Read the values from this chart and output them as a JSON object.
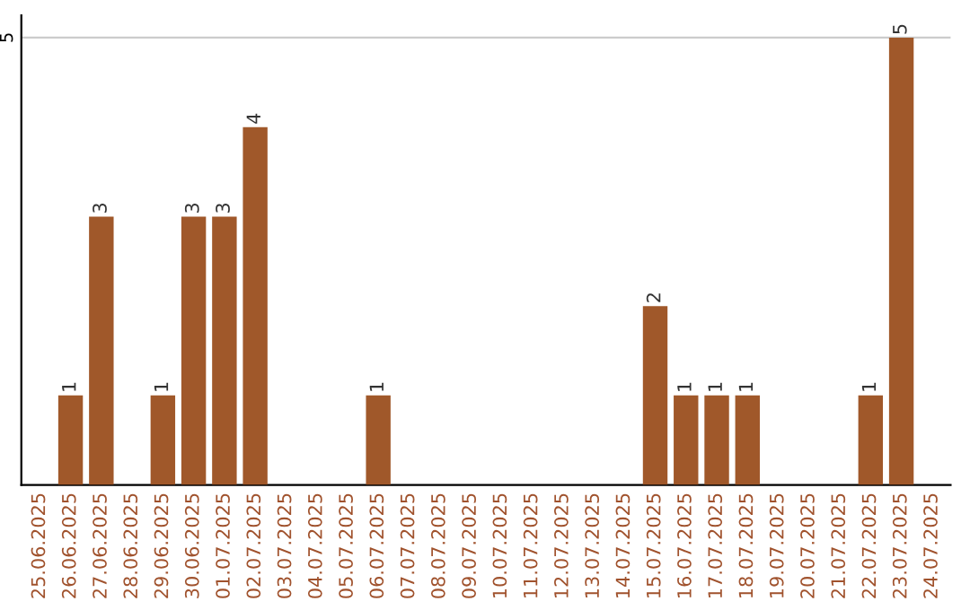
{
  "chart_data": {
    "type": "bar",
    "categories": [
      "25.06.2025",
      "26.06.2025",
      "27.06.2025",
      "28.06.2025",
      "29.06.2025",
      "30.06.2025",
      "01.07.2025",
      "02.07.2025",
      "03.07.2025",
      "04.07.2025",
      "05.07.2025",
      "06.07.2025",
      "07.07.2025",
      "08.07.2025",
      "09.07.2025",
      "10.07.2025",
      "11.07.2025",
      "12.07.2025",
      "13.07.2025",
      "14.07.2025",
      "15.07.2025",
      "16.07.2025",
      "17.07.2025",
      "18.07.2025",
      "19.07.2025",
      "20.07.2025",
      "21.07.2025",
      "22.07.2025",
      "23.07.2025",
      "24.07.2025"
    ],
    "values": [
      0,
      1,
      3,
      0,
      1,
      3,
      3,
      4,
      0,
      0,
      0,
      1,
      0,
      0,
      0,
      0,
      0,
      0,
      0,
      0,
      2,
      1,
      1,
      1,
      0,
      0,
      0,
      1,
      5,
      0
    ],
    "value_labels": [
      null,
      "1",
      "3",
      null,
      "1",
      "3",
      "3",
      "4",
      null,
      null,
      null,
      "1",
      null,
      null,
      null,
      null,
      null,
      null,
      null,
      null,
      "2",
      "1",
      "1",
      "1",
      null,
      null,
      null,
      "1",
      "5",
      null
    ],
    "color": "#a0582a",
    "ylim": [
      0,
      5.25
    ],
    "yticks": [
      5
    ],
    "grid": "y"
  }
}
